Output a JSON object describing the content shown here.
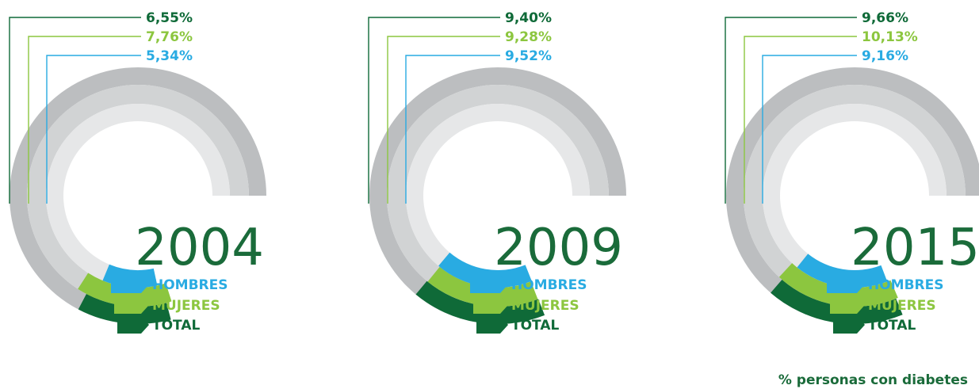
{
  "chart_data": {
    "type": "radial-bar",
    "colors": {
      "total": "#0f6a38",
      "mujeres": "#8cc63f",
      "hombres": "#29abe2",
      "track_outer": "#bcbec0",
      "track_middle": "#d1d3d4",
      "track_inner": "#e6e7e8",
      "year_text": "#1a6b3a"
    },
    "series_labels": [
      "HOMBRES",
      "MUJERES",
      "TOTAL"
    ],
    "panels": [
      {
        "year": "2004",
        "values": {
          "total": 6.55,
          "mujeres": 7.76,
          "hombres": 5.34
        },
        "labels": {
          "total": "6,55%",
          "mujeres": "7,76%",
          "hombres": "5,34%"
        }
      },
      {
        "year": "2009",
        "values": {
          "total": 9.4,
          "mujeres": 9.28,
          "hombres": 9.52
        },
        "labels": {
          "total": "9,40%",
          "mujeres": "9,28%",
          "hombres": "9,52%"
        }
      },
      {
        "year": "2015",
        "values": {
          "total": 9.66,
          "mujeres": 10.13,
          "hombres": 9.16
        },
        "labels": {
          "total": "9,66%",
          "mujeres": "10,13%",
          "hombres": "9,16%"
        }
      }
    ],
    "footnote": "% personas con diabetes"
  }
}
